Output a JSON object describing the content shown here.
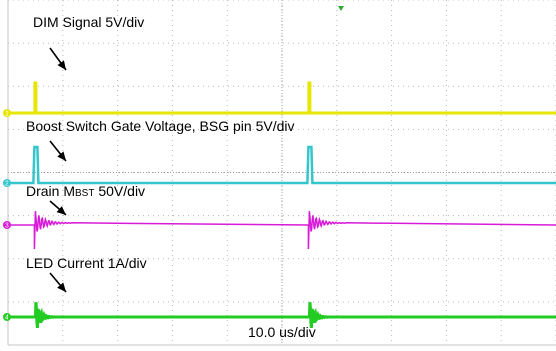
{
  "chart_data": {
    "type": "line",
    "timebase": "10.0 us/div",
    "divisions": {
      "x": 10,
      "y": 8
    },
    "grid": true,
    "annotations": [
      "DIM Signal 5V/div",
      "Boost Switch Gate Voltage, BSG pin 5V/div",
      "Drain MBST 50V/div",
      "LED Current 1A/div"
    ],
    "channel_markers": [
      "1",
      "2",
      "3",
      "4"
    ],
    "series": [
      {
        "label_prefix": "DIM Signal 5V/div",
        "color": "#e6e600",
        "shape": "narrow pulses at t = 0.5 div and 5.5 div"
      },
      {
        "label_prefix": "Boost Switch Gate Voltage, BSG pin 5V/div",
        "color": "#33c6cc",
        "shape": "narrow gate pulses at t = 0.5 div and 5.5 div"
      },
      {
        "label_main": "Drain M",
        "label_sub": "BST",
        "label_suffix": " 50V/div",
        "color": "#d81bd8",
        "shape": "step with damped ringing after each pulse"
      },
      {
        "label_prefix": "LED Current 1A/div",
        "color": "#22cc22",
        "shape": "damped ringing spikes after each pulse"
      }
    ]
  }
}
